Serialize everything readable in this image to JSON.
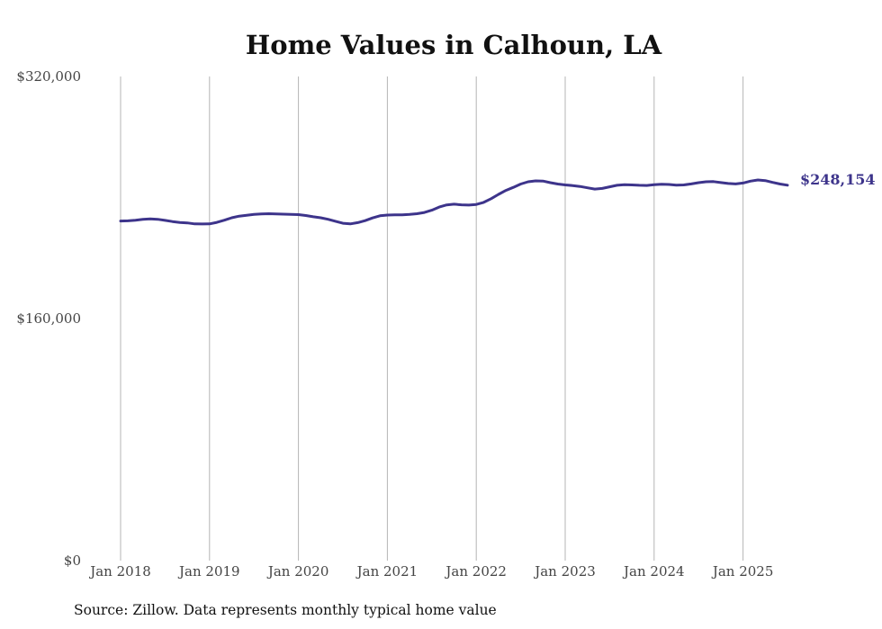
{
  "chart_data": {
    "type": "line",
    "title": "Home Values in Calhoun, LA",
    "xlabel": "",
    "ylabel": "",
    "ylim": [
      0,
      320000
    ],
    "yticks": [
      0,
      160000,
      320000
    ],
    "ytick_labels": [
      "$0",
      "$160,000",
      "$320,000"
    ],
    "xlim": [
      "2018-01",
      "2025-07"
    ],
    "xtick_labels": [
      "Jan 2018",
      "Jan 2019",
      "Jan 2020",
      "Jan 2021",
      "Jan 2022",
      "Jan 2023",
      "Jan 2024",
      "Jan 2025"
    ],
    "grid": "vertical",
    "line_color": "#3d348b",
    "series": [
      {
        "x": [
          "2018-01",
          "2018-02",
          "2018-03",
          "2018-04",
          "2018-05",
          "2018-06",
          "2018-07",
          "2018-08",
          "2018-09",
          "2018-10",
          "2018-11",
          "2018-12",
          "2019-01",
          "2019-02",
          "2019-03",
          "2019-04",
          "2019-05",
          "2019-06",
          "2019-07",
          "2019-08",
          "2019-09",
          "2019-10",
          "2019-11",
          "2019-12",
          "2020-01",
          "2020-02",
          "2020-03",
          "2020-04",
          "2020-05",
          "2020-06",
          "2020-07",
          "2020-08",
          "2020-09",
          "2020-10",
          "2020-11",
          "2020-12",
          "2021-01",
          "2021-02",
          "2021-03",
          "2021-04",
          "2021-05",
          "2021-06",
          "2021-07",
          "2021-08",
          "2021-09",
          "2021-10",
          "2021-11",
          "2021-12",
          "2022-01",
          "2022-02",
          "2022-03",
          "2022-04",
          "2022-05",
          "2022-06",
          "2022-07",
          "2022-08",
          "2022-09",
          "2022-10",
          "2022-11",
          "2022-12",
          "2023-01",
          "2023-02",
          "2023-03",
          "2023-04",
          "2023-05",
          "2023-06",
          "2023-07",
          "2023-08",
          "2023-09",
          "2023-10",
          "2023-11",
          "2023-12",
          "2024-01",
          "2024-02",
          "2024-03",
          "2024-04",
          "2024-05",
          "2024-06",
          "2024-07",
          "2024-08",
          "2024-09",
          "2024-10",
          "2024-11",
          "2024-12",
          "2025-01",
          "2025-02",
          "2025-03",
          "2025-04",
          "2025-05",
          "2025-06",
          "2025-07"
        ],
        "values": [
          224500,
          224600,
          225000,
          225600,
          225900,
          225600,
          224900,
          224100,
          223500,
          223200,
          222600,
          222500,
          222600,
          223600,
          225000,
          226600,
          227700,
          228300,
          228800,
          229200,
          229300,
          229200,
          229000,
          228900,
          228700,
          228100,
          227300,
          226600,
          225600,
          224300,
          223000,
          222600,
          223400,
          224700,
          226500,
          227900,
          228400,
          228500,
          228500,
          228800,
          229300,
          230100,
          231600,
          233700,
          235100,
          235600,
          235200,
          235000,
          235400,
          236800,
          239200,
          242100,
          244700,
          246700,
          248900,
          250400,
          251000,
          250900,
          249800,
          248900,
          248300,
          247900,
          247300,
          246400,
          245600,
          246000,
          247100,
          248100,
          248500,
          248300,
          248100,
          248000,
          248500,
          248800,
          248600,
          248200,
          248300,
          249000,
          249800,
          250400,
          250500,
          249900,
          249300,
          249000,
          249600,
          250800,
          251600,
          251200,
          250000,
          248900,
          248154
        ]
      }
    ],
    "end_label": "$248,154",
    "source": "Source: Zillow. Data represents monthly typical home value"
  }
}
